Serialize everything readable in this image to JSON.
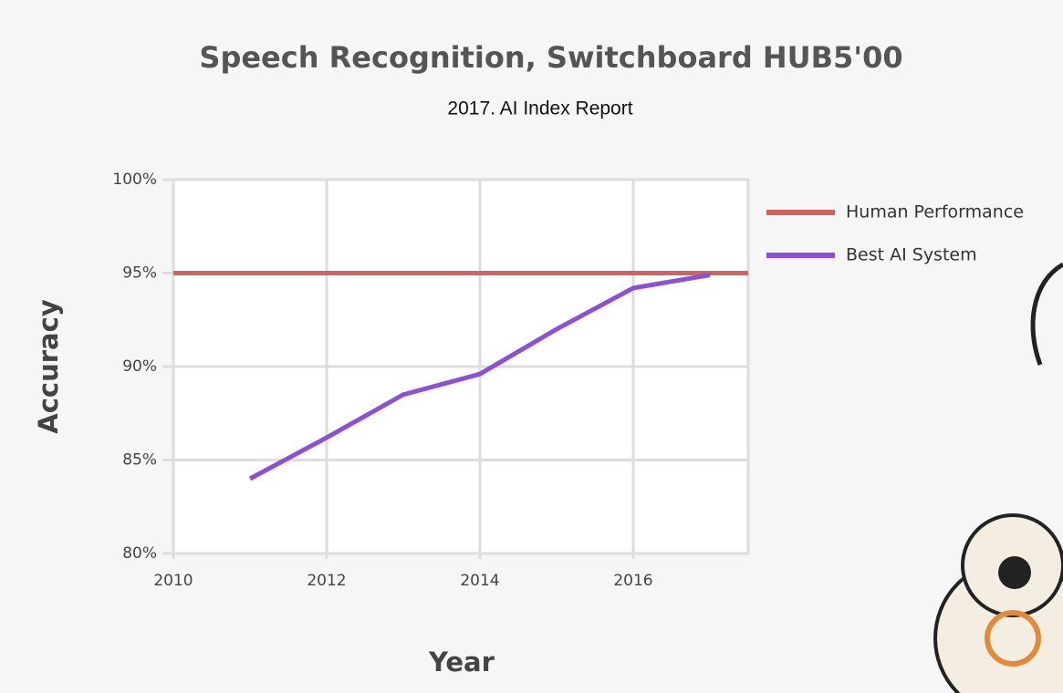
{
  "chart_data": {
    "type": "line",
    "title": "Speech Recognition, Switchboard HUB5'00",
    "subtitle": "2017. AI Index Report",
    "x_label": "Year",
    "y_label": "Accuracy",
    "xlim": [
      2010,
      2017.5
    ],
    "xticks": [
      2010,
      2012,
      2014,
      2016
    ],
    "ylim": [
      80,
      100
    ],
    "yticks": [
      {
        "value": 80,
        "label": "80%"
      },
      {
        "value": 85,
        "label": "85%"
      },
      {
        "value": 90,
        "label": "90%"
      },
      {
        "value": 95,
        "label": "95%"
      },
      {
        "value": 100,
        "label": "100%"
      }
    ],
    "grid": true,
    "legend": "right",
    "series": [
      {
        "name": "Human Performance",
        "color": "#d0635e",
        "x": [
          2010,
          2017.5
        ],
        "values": [
          95,
          95
        ]
      },
      {
        "name": "Best AI System",
        "color": "#8e4fd8",
        "x": [
          2011,
          2012,
          2013,
          2014,
          2015,
          2016,
          2017
        ],
        "values": [
          84.0,
          86.2,
          88.5,
          89.6,
          92.0,
          94.2,
          94.9
        ]
      }
    ]
  }
}
